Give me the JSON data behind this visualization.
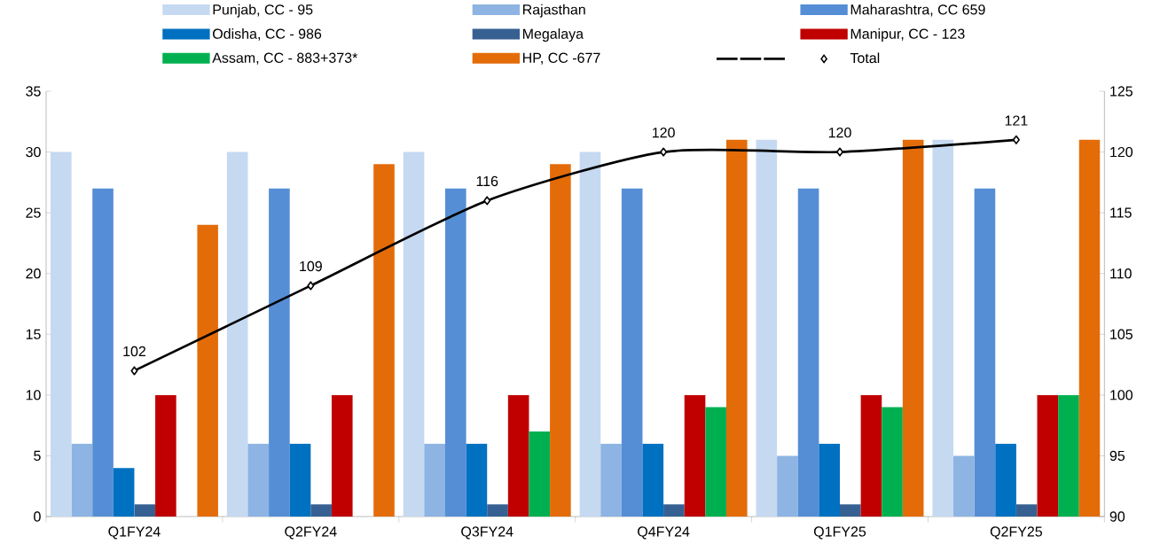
{
  "chart_data": {
    "type": "bar",
    "categories": [
      "Q1FY24",
      "Q2FY24",
      "Q3FY24",
      "Q4FY24",
      "Q1FY25",
      "Q2FY25"
    ],
    "series": [
      {
        "name": "Punjab, CC - 95",
        "color": "#c5d9f1",
        "values": [
          30,
          30,
          30,
          30,
          31,
          31
        ]
      },
      {
        "name": "Rajasthan",
        "color": "#8db4e2",
        "values": [
          6,
          6,
          6,
          6,
          5,
          5
        ]
      },
      {
        "name": "Maharashtra, CC 659",
        "color": "#558ed5",
        "values": [
          27,
          27,
          27,
          27,
          27,
          27
        ]
      },
      {
        "name": "Odisha, CC - 986",
        "color": "#0070c0",
        "values": [
          4,
          6,
          6,
          6,
          6,
          6
        ]
      },
      {
        "name": "Megalaya",
        "color": "#376092",
        "values": [
          1,
          1,
          1,
          1,
          1,
          1
        ]
      },
      {
        "name": "Manipur, CC - 123",
        "color": "#c00000",
        "values": [
          10,
          10,
          10,
          10,
          10,
          10
        ]
      },
      {
        "name": "Assam, CC - 883+373*",
        "color": "#00b050",
        "values": [
          null,
          null,
          7,
          9,
          9,
          10
        ]
      },
      {
        "name": "HP, CC -677",
        "color": "#e36c09",
        "values": [
          24,
          29,
          29,
          31,
          31,
          31
        ]
      },
      {
        "name": "Total",
        "color": "#000000",
        "type": "line",
        "axis": "y2",
        "marker": "diamond",
        "values": [
          102,
          109,
          116,
          120,
          120,
          121
        ],
        "value_labels": [
          "102",
          "109",
          "116",
          "120",
          "120",
          "121"
        ]
      }
    ],
    "ylim": [
      0,
      35
    ],
    "yticks": [
      0,
      5,
      10,
      15,
      20,
      25,
      30,
      35
    ],
    "y2lim": [
      90,
      125
    ],
    "y2ticks": [
      90,
      95,
      100,
      105,
      110,
      115,
      120,
      125
    ],
    "legend": "top"
  }
}
